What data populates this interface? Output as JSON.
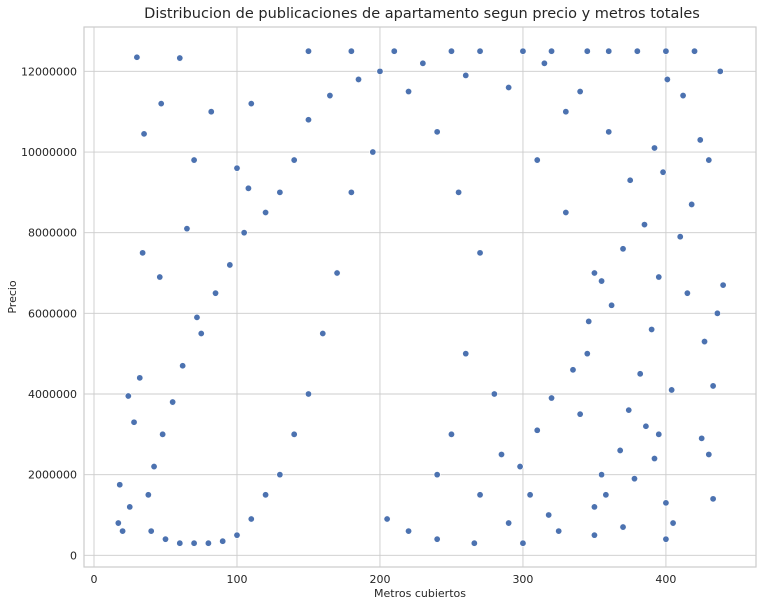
{
  "chart_data": {
    "type": "scatter",
    "title": "Distribucion de publicaciones de apartamento segun precio y metros totales",
    "xlabel": "Metros cubiertos",
    "ylabel": "Precio",
    "xlim": [
      -7,
      463
    ],
    "ylim": [
      -290000,
      13100000
    ],
    "xticks": [
      0,
      100,
      200,
      300,
      400
    ],
    "yticks": [
      0,
      2000000,
      4000000,
      6000000,
      8000000,
      10000000,
      12000000
    ],
    "ytick_labels": [
      "0",
      "2000000",
      "4000000",
      "6000000",
      "8000000",
      "10000000",
      "12000000"
    ],
    "grid": true,
    "color": "#4c72b0",
    "series": [
      {
        "points": [
          [
            30,
            12350000
          ],
          [
            60,
            12330000
          ],
          [
            47,
            11200000
          ],
          [
            35,
            10450000
          ],
          [
            82,
            11000000
          ],
          [
            70,
            9800000
          ],
          [
            100,
            9600000
          ],
          [
            110,
            11200000
          ],
          [
            108,
            9100000
          ],
          [
            34,
            7500000
          ],
          [
            46,
            6900000
          ],
          [
            65,
            8100000
          ],
          [
            72,
            5900000
          ],
          [
            17,
            800000
          ],
          [
            20,
            600000
          ],
          [
            25,
            1200000
          ],
          [
            28,
            3300000
          ],
          [
            24,
            3950000
          ],
          [
            32,
            4400000
          ],
          [
            18,
            1750000
          ],
          [
            150,
            12500000
          ],
          [
            180,
            12500000
          ],
          [
            210,
            12500000
          ],
          [
            250,
            12500000
          ],
          [
            270,
            12500000
          ],
          [
            300,
            12500000
          ],
          [
            320,
            12500000
          ],
          [
            345,
            12500000
          ],
          [
            360,
            12500000
          ],
          [
            380,
            12500000
          ],
          [
            400,
            12500000
          ],
          [
            420,
            12500000
          ],
          [
            438,
            12000000
          ],
          [
            430,
            9800000
          ],
          [
            440,
            6700000
          ],
          [
            436,
            6000000
          ],
          [
            433,
            4200000
          ],
          [
            425,
            2900000
          ],
          [
            430,
            2500000
          ],
          [
            433,
            1400000
          ],
          [
            400,
            400000
          ],
          [
            415,
            6500000
          ],
          [
            398,
            9500000
          ],
          [
            392,
            10100000
          ],
          [
            401,
            11800000
          ],
          [
            390,
            5600000
          ],
          [
            386,
            3200000
          ],
          [
            392,
            2400000
          ],
          [
            400,
            1300000
          ],
          [
            405,
            800000
          ],
          [
            350,
            500000
          ],
          [
            370,
            700000
          ],
          [
            350,
            1200000
          ],
          [
            355,
            2000000
          ],
          [
            340,
            3500000
          ],
          [
            345,
            5000000
          ],
          [
            350,
            7000000
          ],
          [
            330,
            8500000
          ],
          [
            310,
            9800000
          ],
          [
            330,
            11000000
          ],
          [
            280,
            4000000
          ],
          [
            285,
            2500000
          ],
          [
            270,
            1500000
          ],
          [
            290,
            800000
          ],
          [
            300,
            300000
          ],
          [
            266,
            300000
          ],
          [
            240,
            400000
          ],
          [
            220,
            600000
          ],
          [
            205,
            900000
          ],
          [
            240,
            2000000
          ],
          [
            250,
            3000000
          ],
          [
            260,
            5000000
          ],
          [
            270,
            7500000
          ],
          [
            255,
            9000000
          ],
          [
            240,
            10500000
          ],
          [
            220,
            11500000
          ],
          [
            195,
            10000000
          ],
          [
            180,
            9000000
          ],
          [
            170,
            7000000
          ],
          [
            160,
            5500000
          ],
          [
            150,
            4000000
          ],
          [
            140,
            3000000
          ],
          [
            130,
            2000000
          ],
          [
            120,
            1500000
          ],
          [
            110,
            900000
          ],
          [
            100,
            500000
          ],
          [
            90,
            350000
          ],
          [
            80,
            300000
          ],
          [
            70,
            300000
          ],
          [
            60,
            300000
          ],
          [
            50,
            400000
          ],
          [
            40,
            600000
          ],
          [
            38,
            1500000
          ],
          [
            42,
            2200000
          ],
          [
            48,
            3000000
          ],
          [
            55,
            3800000
          ],
          [
            62,
            4700000
          ],
          [
            75,
            5500000
          ],
          [
            85,
            6500000
          ],
          [
            95,
            7200000
          ],
          [
            105,
            8000000
          ],
          [
            120,
            8500000
          ],
          [
            130,
            9000000
          ],
          [
            140,
            9800000
          ],
          [
            150,
            10800000
          ],
          [
            165,
            11400000
          ],
          [
            185,
            11800000
          ],
          [
            200,
            12000000
          ],
          [
            230,
            12200000
          ],
          [
            260,
            11900000
          ],
          [
            290,
            11600000
          ],
          [
            315,
            12200000
          ],
          [
            340,
            11500000
          ],
          [
            360,
            10500000
          ],
          [
            375,
            9300000
          ],
          [
            385,
            8200000
          ],
          [
            370,
            7600000
          ],
          [
            355,
            6800000
          ],
          [
            362,
            6200000
          ],
          [
            346,
            5800000
          ],
          [
            335,
            4600000
          ],
          [
            320,
            3900000
          ],
          [
            310,
            3100000
          ],
          [
            298,
            2200000
          ],
          [
            305,
            1500000
          ],
          [
            318,
            1000000
          ],
          [
            325,
            600000
          ],
          [
            358,
            1500000
          ],
          [
            368,
            2600000
          ],
          [
            374,
            3600000
          ],
          [
            382,
            4500000
          ],
          [
            395,
            6900000
          ],
          [
            410,
            7900000
          ],
          [
            418,
            8700000
          ],
          [
            424,
            10300000
          ],
          [
            412,
            11400000
          ],
          [
            427,
            5300000
          ],
          [
            404,
            4100000
          ],
          [
            395,
            3000000
          ],
          [
            378,
            1900000
          ]
        ]
      }
    ]
  }
}
